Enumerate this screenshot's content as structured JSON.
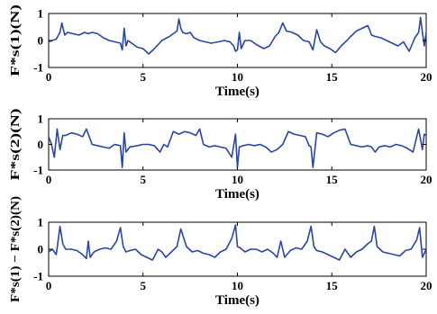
{
  "figure": {
    "line_color": "#2a46a0",
    "axis_color": "#000000"
  },
  "chart_data": [
    {
      "type": "line",
      "ylabel": "F*s(1)(N)",
      "xlabel": "Time(s)",
      "xlim": [
        0,
        20
      ],
      "ylim": [
        -1,
        1
      ],
      "xticks": [
        "0",
        "5",
        "10",
        "15",
        "20"
      ],
      "yticks": [
        "-1",
        "0",
        "1"
      ],
      "grid": false,
      "series": [
        {
          "x": [
            0,
            0.2,
            0.4,
            0.6,
            0.7,
            0.85,
            1.0,
            1.3,
            1.6,
            1.9,
            2.1,
            2.3,
            2.6,
            2.9,
            3.2,
            3.5,
            3.8,
            3.9,
            4.0,
            4.1,
            4.2,
            4.4,
            4.7,
            5.0,
            5.3,
            5.6,
            6.0,
            6.4,
            6.8,
            6.9,
            7.0,
            7.1,
            7.3,
            7.5,
            7.7,
            8.0,
            8.3,
            8.6,
            9.0,
            9.3,
            9.6,
            9.8,
            9.9,
            10.0,
            10.1,
            10.2,
            10.4,
            10.7,
            11.0,
            11.4,
            11.7,
            12.0,
            12.2,
            12.4,
            12.6,
            12.9,
            13.2,
            13.5,
            13.8,
            14.0,
            14.2,
            14.4,
            14.6,
            14.9,
            15.2,
            15.5,
            15.8,
            16.0,
            16.3,
            16.6,
            16.9,
            17.0,
            17.1,
            17.3,
            17.6,
            17.9,
            18.2,
            18.5,
            18.8,
            19.1,
            19.4,
            19.6,
            19.7,
            19.8,
            19.9,
            20.0
          ],
          "y": [
            -0.05,
            0.0,
            0.05,
            0.3,
            0.65,
            0.2,
            0.3,
            0.25,
            0.2,
            0.3,
            0.25,
            0.3,
            0.25,
            0.1,
            0.0,
            -0.05,
            -0.1,
            -0.35,
            0.45,
            -0.2,
            0.0,
            -0.1,
            -0.25,
            -0.3,
            -0.5,
            -0.3,
            0.0,
            0.15,
            0.35,
            0.8,
            0.45,
            0.3,
            0.25,
            0.3,
            0.1,
            0.0,
            -0.05,
            -0.1,
            -0.05,
            0.0,
            -0.05,
            -0.2,
            -0.4,
            -0.35,
            0.3,
            -0.3,
            0.0,
            0.0,
            -0.15,
            -0.3,
            -0.2,
            0.15,
            0.3,
            0.65,
            0.35,
            0.3,
            0.2,
            0.0,
            -0.05,
            -0.35,
            0.4,
            -0.05,
            -0.2,
            -0.3,
            -0.45,
            -0.2,
            0.0,
            0.15,
            0.35,
            0.45,
            0.55,
            0.4,
            0.2,
            0.15,
            0.1,
            0.0,
            -0.1,
            -0.2,
            -0.05,
            -0.4,
            0.1,
            0.3,
            0.85,
            0.3,
            -0.2,
            0.3
          ]
        }
      ]
    },
    {
      "type": "line",
      "ylabel": "F*s(2)(N)",
      "xlabel": "Time(s)",
      "xlim": [
        0,
        20
      ],
      "ylim": [
        -1,
        1
      ],
      "xticks": [
        "0",
        "5",
        "10",
        "15",
        "20"
      ],
      "yticks": [
        "-1",
        "0",
        "1"
      ],
      "grid": false,
      "series": [
        {
          "x": [
            0,
            0.15,
            0.3,
            0.45,
            0.6,
            0.75,
            0.9,
            1.2,
            1.5,
            1.8,
            2.0,
            2.3,
            2.6,
            2.9,
            3.2,
            3.5,
            3.8,
            3.9,
            4.0,
            4.1,
            4.3,
            4.7,
            5.0,
            5.3,
            5.6,
            5.9,
            6.1,
            6.3,
            6.6,
            6.9,
            7.2,
            7.5,
            7.8,
            8.0,
            8.2,
            8.5,
            8.8,
            9.1,
            9.4,
            9.7,
            9.9,
            10.0,
            10.1,
            10.3,
            10.6,
            10.9,
            11.2,
            11.5,
            11.8,
            12.1,
            12.4,
            12.7,
            13.0,
            13.3,
            13.6,
            13.8,
            13.9,
            14.0,
            14.2,
            14.5,
            14.8,
            15.1,
            15.4,
            15.7,
            16.0,
            16.3,
            16.6,
            16.9,
            17.1,
            17.3,
            17.5,
            17.8,
            18.1,
            18.4,
            18.7,
            19.0,
            19.3,
            19.6,
            19.8,
            19.9,
            20.0
          ],
          "y": [
            0.3,
            0.0,
            -0.5,
            0.6,
            -0.2,
            0.35,
            0.35,
            0.45,
            0.4,
            0.3,
            0.6,
            0.0,
            -0.05,
            -0.1,
            -0.15,
            0.0,
            -0.05,
            -0.9,
            0.45,
            -0.3,
            -0.1,
            -0.05,
            0.0,
            0.0,
            -0.05,
            -0.3,
            0.0,
            -0.1,
            0.5,
            0.4,
            0.5,
            0.45,
            0.35,
            0.6,
            0.0,
            -0.1,
            -0.05,
            -0.1,
            -0.15,
            -0.5,
            0.4,
            -0.9,
            -0.1,
            -0.05,
            0.0,
            -0.05,
            0.0,
            -0.1,
            -0.3,
            -0.2,
            0.0,
            0.5,
            0.4,
            0.35,
            0.3,
            -0.05,
            -0.1,
            -0.9,
            0.45,
            0.4,
            0.3,
            0.45,
            0.55,
            0.6,
            0.0,
            -0.05,
            -0.1,
            -0.05,
            -0.1,
            -0.3,
            -0.1,
            -0.05,
            -0.1,
            0.0,
            -0.05,
            -0.15,
            -0.3,
            0.6,
            -0.2,
            0.4,
            0.35
          ]
        }
      ]
    },
    {
      "type": "line",
      "ylabel": "F*s(1) − F*s(2)(N)",
      "xlabel": "Time(s)",
      "xlim": [
        0,
        20
      ],
      "ylim": [
        -1,
        1
      ],
      "xticks": [
        "0",
        "5",
        "10",
        "15",
        "20"
      ],
      "yticks": [
        "-1",
        "0",
        "1"
      ],
      "grid": false,
      "series": [
        {
          "x": [
            0,
            0.2,
            0.4,
            0.5,
            0.6,
            0.75,
            0.9,
            1.2,
            1.5,
            1.8,
            2.0,
            2.1,
            2.2,
            2.4,
            2.7,
            3.0,
            3.3,
            3.6,
            3.8,
            3.95,
            4.1,
            4.3,
            4.6,
            4.9,
            5.2,
            5.5,
            5.8,
            6.0,
            6.2,
            6.5,
            6.8,
            7.0,
            7.3,
            7.6,
            7.9,
            8.2,
            8.5,
            8.8,
            9.1,
            9.4,
            9.7,
            9.9,
            10.0,
            10.15,
            10.4,
            10.7,
            11.0,
            11.3,
            11.6,
            11.9,
            12.1,
            12.3,
            12.5,
            12.8,
            13.1,
            13.4,
            13.7,
            13.9,
            14.05,
            14.2,
            14.5,
            14.8,
            15.1,
            15.4,
            15.7,
            16.0,
            16.3,
            16.6,
            16.9,
            17.1,
            17.25,
            17.4,
            17.7,
            18.0,
            18.3,
            18.6,
            18.9,
            19.2,
            19.5,
            19.65,
            19.8,
            20.0
          ],
          "y": [
            -0.1,
            0.0,
            -0.2,
            0.3,
            0.85,
            0.2,
            0.0,
            0.0,
            -0.05,
            -0.2,
            -0.35,
            0.3,
            -0.3,
            -0.1,
            0.0,
            0.05,
            0.0,
            0.3,
            0.8,
            0.1,
            -0.1,
            -0.05,
            0.0,
            -0.2,
            -0.3,
            -0.4,
            0.0,
            -0.1,
            -0.3,
            -0.1,
            0.1,
            0.75,
            0.1,
            -0.1,
            -0.05,
            -0.15,
            -0.2,
            -0.3,
            -0.1,
            0.0,
            0.4,
            0.9,
            0.1,
            0.05,
            -0.1,
            0.0,
            0.0,
            -0.1,
            0.0,
            -0.15,
            -0.3,
            0.3,
            -0.3,
            -0.05,
            0.05,
            0.0,
            0.3,
            0.85,
            0.1,
            -0.05,
            -0.1,
            -0.2,
            -0.3,
            -0.4,
            0.0,
            -0.3,
            -0.1,
            0.0,
            0.2,
            0.3,
            0.85,
            0.1,
            -0.1,
            -0.15,
            -0.2,
            -0.25,
            -0.05,
            0.0,
            0.35,
            0.8,
            -0.3,
            0.0
          ]
        }
      ]
    }
  ]
}
